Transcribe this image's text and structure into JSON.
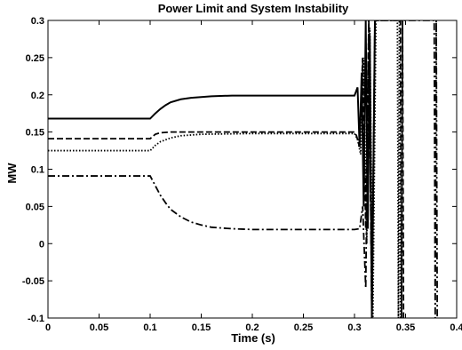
{
  "chart_data": {
    "type": "line",
    "title": "Power Limit and System Instability",
    "xlabel": "Time (s)",
    "ylabel": "MW",
    "xlim": [
      0,
      0.4
    ],
    "ylim": [
      -0.1,
      0.3
    ],
    "x_ticks": [
      "0",
      "0.05",
      "0.1",
      "0.15",
      "0.2",
      "0.25",
      "0.3",
      "0.35",
      "0.4"
    ],
    "y_ticks": [
      "-0.1",
      "-0.05",
      "0",
      "0.05",
      "0.1",
      "0.15",
      "0.2",
      "0.25",
      "0.3"
    ],
    "grid": false,
    "legend": "none",
    "series": [
      {
        "style": "solid",
        "x": [
          0,
          0.1,
          0.105,
          0.11,
          0.115,
          0.12,
          0.13,
          0.14,
          0.15,
          0.16,
          0.18,
          0.2,
          0.25,
          0.3,
          0.303,
          0.305,
          0.307,
          0.309,
          0.311,
          0.313,
          0.315,
          0.317,
          0.32
        ],
        "values": [
          0.168,
          0.168,
          0.175,
          0.181,
          0.186,
          0.19,
          0.194,
          0.196,
          0.197,
          0.198,
          0.199,
          0.199,
          0.199,
          0.199,
          0.21,
          0.13,
          0.23,
          0.05,
          0.3,
          0.02,
          0.28,
          -0.1,
          0.3
        ]
      },
      {
        "style": "dashed",
        "x": [
          0,
          0.1,
          0.105,
          0.11,
          0.12,
          0.13,
          0.15,
          0.2,
          0.25,
          0.3,
          0.302,
          0.305,
          0.308,
          0.311,
          0.314,
          0.317,
          0.32,
          0.345,
          0.346,
          0.347,
          0.348
        ],
        "values": [
          0.141,
          0.141,
          0.147,
          0.149,
          0.15,
          0.15,
          0.15,
          0.15,
          0.15,
          0.15,
          0.145,
          0.13,
          0.25,
          0.02,
          0.3,
          -0.1,
          0.3,
          0.3,
          -0.1,
          0.3,
          -0.1
        ]
      },
      {
        "style": "dotted",
        "x": [
          0,
          0.1,
          0.105,
          0.11,
          0.12,
          0.13,
          0.15,
          0.2,
          0.25,
          0.3,
          0.303,
          0.306,
          0.309,
          0.312,
          0.315,
          0.318,
          0.321,
          0.342,
          0.343,
          0.344,
          0.345
        ],
        "values": [
          0.125,
          0.125,
          0.132,
          0.137,
          0.142,
          0.145,
          0.147,
          0.148,
          0.148,
          0.148,
          0.14,
          0.12,
          0.25,
          0.0,
          0.29,
          -0.1,
          0.3,
          0.3,
          -0.1,
          0.3,
          -0.1
        ]
      },
      {
        "style": "dashdot",
        "x": [
          0,
          0.1,
          0.105,
          0.11,
          0.115,
          0.12,
          0.13,
          0.14,
          0.15,
          0.16,
          0.18,
          0.2,
          0.25,
          0.3,
          0.305,
          0.308,
          0.311,
          0.314,
          0.317,
          0.32,
          0.378,
          0.379,
          0.38,
          0.381
        ],
        "values": [
          0.091,
          0.091,
          0.078,
          0.065,
          0.055,
          0.046,
          0.036,
          0.029,
          0.025,
          0.022,
          0.02,
          0.019,
          0.019,
          0.019,
          0.02,
          0.05,
          -0.06,
          0.3,
          -0.1,
          0.3,
          0.3,
          -0.1,
          0.3,
          -0.1
        ]
      }
    ]
  }
}
